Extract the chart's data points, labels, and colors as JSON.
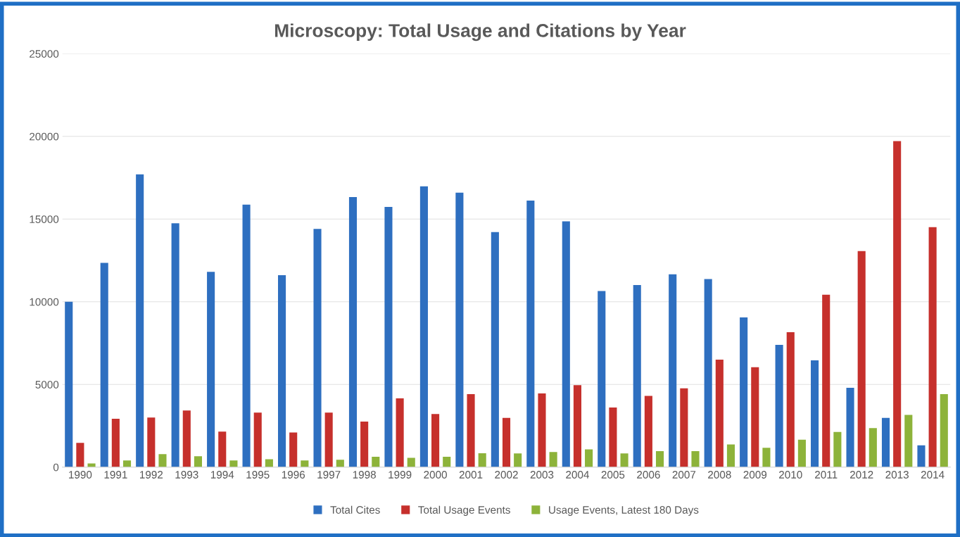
{
  "chart_data": {
    "type": "bar",
    "title": "Microscopy: Total Usage and Citations by Year",
    "categories": [
      "1990",
      "1991",
      "1992",
      "1993",
      "1994",
      "1995",
      "1996",
      "1997",
      "1998",
      "1999",
      "2000",
      "2001",
      "2002",
      "2003",
      "2004",
      "2005",
      "2006",
      "2007",
      "2008",
      "2009",
      "2010",
      "2011",
      "2012",
      "2013",
      "2014"
    ],
    "series": [
      {
        "name": "Total Cites",
        "color": "#2e6fc0",
        "values": [
          10000,
          12350,
          17700,
          14750,
          11810,
          15870,
          11610,
          14410,
          16330,
          15740,
          16980,
          16600,
          14220,
          16120,
          14860,
          10650,
          11010,
          11660,
          11370,
          9060,
          7400,
          6460,
          4800,
          2980,
          1320
        ]
      },
      {
        "name": "Total Usage Events",
        "color": "#c6302c",
        "values": [
          1470,
          2930,
          3000,
          3430,
          2150,
          3300,
          2100,
          3300,
          2760,
          4160,
          3210,
          4420,
          2980,
          4460,
          4960,
          3610,
          4310,
          4770,
          6500,
          6050,
          8160,
          10430,
          13070,
          19710,
          14510
        ]
      },
      {
        "name": "Usage Events, Latest 180 Days",
        "color": "#8db33a",
        "values": [
          230,
          410,
          790,
          660,
          410,
          480,
          410,
          450,
          630,
          570,
          630,
          840,
          830,
          920,
          1080,
          830,
          970,
          970,
          1370,
          1170,
          1660,
          2130,
          2360,
          3160,
          4420
        ]
      }
    ],
    "ylim": [
      0,
      25000
    ],
    "yticks": [
      0,
      5000,
      10000,
      15000,
      20000,
      25000
    ],
    "grid": "y",
    "legend": "bottom"
  }
}
